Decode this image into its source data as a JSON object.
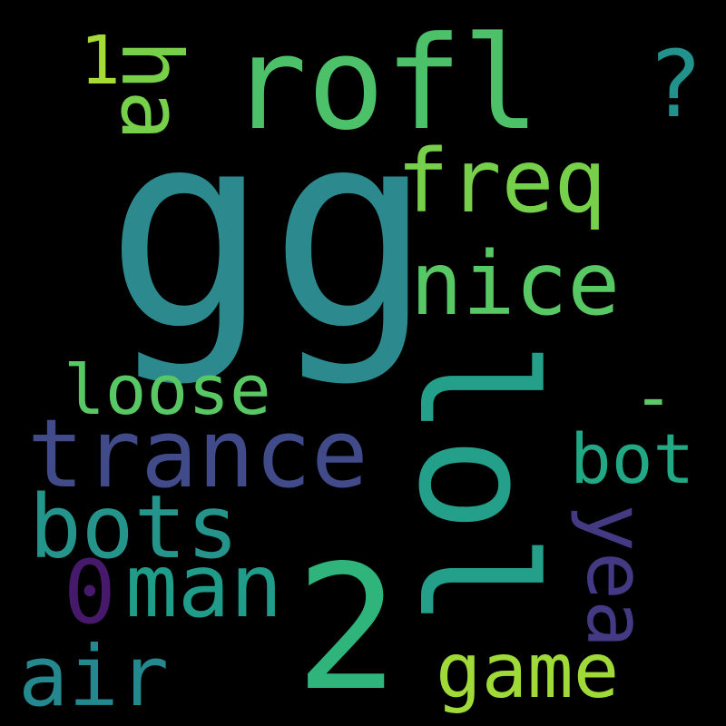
{
  "words": {
    "gg": {
      "text": "gg",
      "color": "#2c8a8e",
      "vertical": false
    },
    "rofl": {
      "text": "rofl",
      "color": "#4cc16a",
      "vertical": false
    },
    "lol": {
      "text": "lol",
      "color": "#24a08a",
      "vertical": true
    },
    "two": {
      "text": "2",
      "color": "#2fb47c",
      "vertical": false
    },
    "trance": {
      "text": "trance",
      "color": "#424b8a",
      "vertical": false
    },
    "nice": {
      "text": "nice",
      "color": "#58c865",
      "vertical": false
    },
    "freq": {
      "text": "freq",
      "color": "#77d04a",
      "vertical": false
    },
    "bots": {
      "text": "bots",
      "color": "#25958c",
      "vertical": false
    },
    "man": {
      "text": "man",
      "color": "#209c8a",
      "vertical": false
    },
    "loose": {
      "text": "loose",
      "color": "#58c865",
      "vertical": false
    },
    "ha": {
      "text": "ha",
      "color": "#77d04a",
      "vertical": true
    },
    "question": {
      "text": "?",
      "color": "#21928c",
      "vertical": false
    },
    "one": {
      "text": "1",
      "color": "#a5db36",
      "vertical": false
    },
    "dash": {
      "text": "-",
      "color": "#5ec962",
      "vertical": false
    },
    "bot": {
      "text": "bot",
      "color": "#22a884",
      "vertical": false
    },
    "yea": {
      "text": "yea",
      "color": "#443983",
      "vertical": true
    },
    "zero": {
      "text": "0",
      "color": "#46196b",
      "vertical": false
    },
    "air": {
      "text": "air",
      "color": "#23898e",
      "vertical": false
    },
    "game": {
      "text": "game",
      "color": "#a0da39",
      "vertical": false
    }
  }
}
